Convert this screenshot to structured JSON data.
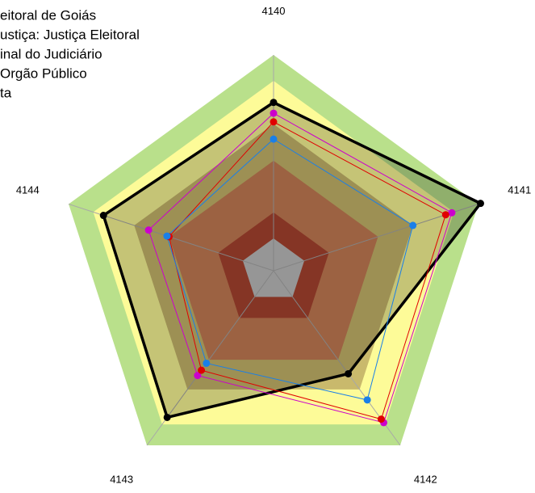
{
  "chart_data": {
    "type": "radar",
    "categories": [
      "4140",
      "4141",
      "4142",
      "4143",
      "4144"
    ],
    "rlim": [
      0,
      100
    ],
    "bands": [
      {
        "max": 100,
        "color": "#b9e08b"
      },
      {
        "max": 88,
        "color": "#fdfb98"
      },
      {
        "max": 68,
        "color": "#c9b96c"
      },
      {
        "max": 51,
        "color": "#c87e55"
      },
      {
        "max": 27,
        "color": "#ab4530"
      },
      {
        "max": 15,
        "color": "#c0c0c0"
      }
    ],
    "legend": [
      "eitoral de Goiás",
      "ustiça: Justiça Eleitoral",
      "inal do Judiciário",
      "Orgão Público",
      "ta"
    ],
    "series": [
      {
        "color": "#000000",
        "fill": true,
        "values": [
          78,
          101,
          59,
          84,
          83
        ]
      },
      {
        "color": "#cc00cc",
        "values": [
          73,
          87,
          87,
          60,
          61
        ]
      },
      {
        "color": "#e00000",
        "values": [
          69,
          84,
          85,
          57,
          51
        ]
      },
      {
        "color": "#1a7fe8",
        "values": [
          61,
          68,
          74,
          53,
          52
        ]
      }
    ]
  }
}
